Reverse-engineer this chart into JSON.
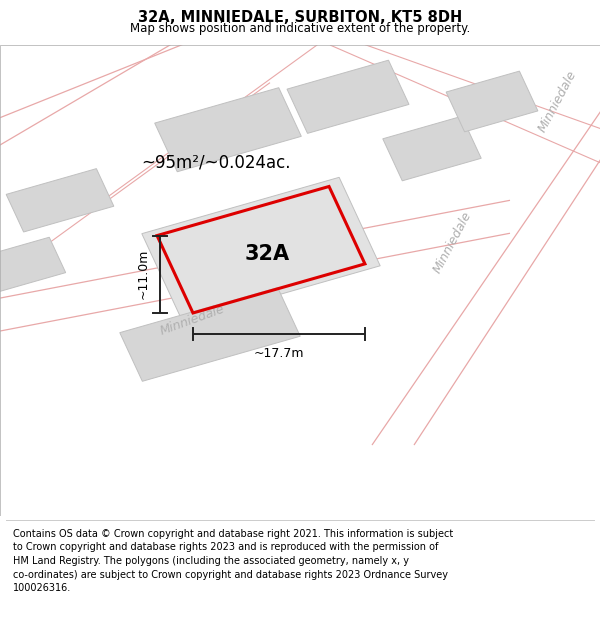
{
  "title": "32A, MINNIEDALE, SURBITON, KT5 8DH",
  "subtitle": "Map shows position and indicative extent of the property.",
  "footer_text": "Contains OS data © Crown copyright and database right 2021. This information is subject\nto Crown copyright and database rights 2023 and is reproduced with the permission of\nHM Land Registry. The polygons (including the associated geometry, namely x, y\nco-ordinates) are subject to Crown copyright and database rights 2023 Ordnance Survey\n100026316.",
  "area_label": "~95m²/~0.024ac.",
  "plot_label": "32A",
  "width_label": "~17.7m",
  "height_label": "~11.0m",
  "map_bg": "#f7f7f7",
  "building_color": "#d6d6d6",
  "building_edge": "#c0c0c0",
  "road_line_color": "#e8a8a8",
  "plot_edge_color": "#dd0000",
  "dim_line_color": "#222222",
  "street_text_color": "#b0b0b0",
  "title_fontsize": 10.5,
  "subtitle_fontsize": 8.5,
  "footer_fontsize": 7.0,
  "area_fontsize": 12,
  "plot_label_fontsize": 15,
  "dim_fontsize": 9,
  "street_fontsize": 9
}
